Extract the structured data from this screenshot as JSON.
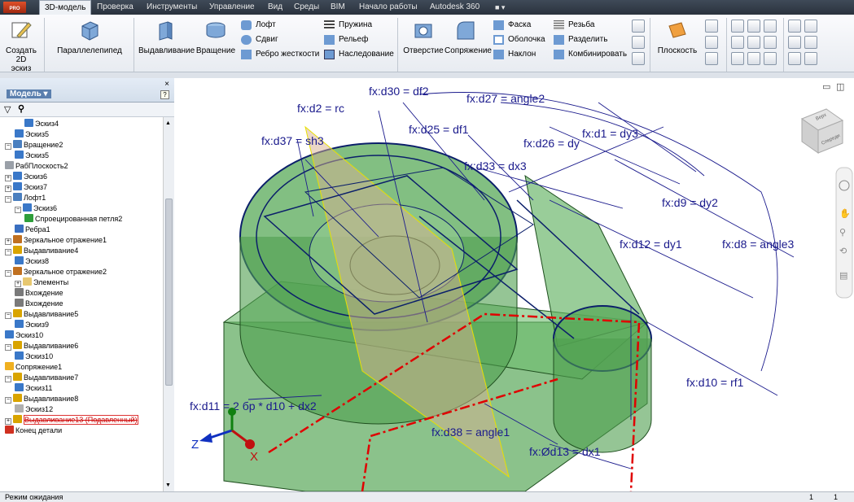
{
  "menu": {
    "tabs": [
      "3D-модель",
      "Проверка",
      "Инструменты",
      "Управление",
      "Вид",
      "Среды",
      "BIM",
      "Начало работы",
      "Autodesk 360"
    ],
    "logo": "PRO"
  },
  "ribbon": {
    "create_sketch": "Создать\n2D эскиз",
    "box": "Параллелепипед",
    "extrude": "Выдавливание",
    "revolve": "Вращение",
    "loft": "Лофт",
    "sweep": "Сдвиг",
    "rib": "Ребро жесткости",
    "coil": "Пружина",
    "emboss": "Рельеф",
    "derive": "Наследование",
    "hole": "Отверстие",
    "fillet": "Сопряжение",
    "chamfer": "Фаска",
    "shell": "Оболочка",
    "draft": "Наклон",
    "thread": "Резьба",
    "split": "Разделить",
    "combine": "Комбинировать",
    "plane": "Плоскость"
  },
  "panel": {
    "title": "Модель ▾",
    "close": "×",
    "help": "?"
  },
  "tree": [
    {
      "label": "Эскиз4",
      "indent": 2,
      "icon": "sketch"
    },
    {
      "label": "Эскиз5",
      "indent": 1,
      "icon": "sketch"
    },
    {
      "label": "Вращение2",
      "indent": 0,
      "icon": "revolve",
      "expander": "−"
    },
    {
      "label": "Эскиз5",
      "indent": 1,
      "icon": "sketch"
    },
    {
      "label": "РабПлоскость2",
      "indent": 0,
      "icon": "plane"
    },
    {
      "label": "Эскиз6",
      "indent": 0,
      "icon": "sketch",
      "expander": "+"
    },
    {
      "label": "Эскиз7",
      "indent": 0,
      "icon": "sketch",
      "expander": "+"
    },
    {
      "label": "Лофт1",
      "indent": 0,
      "icon": "loft",
      "expander": "−"
    },
    {
      "label": "Эскиз6",
      "indent": 1,
      "icon": "sketch",
      "expander": "−"
    },
    {
      "label": "Спроецированная петля2",
      "indent": 2,
      "icon": "loop"
    },
    {
      "label": "Ребра1",
      "indent": 1,
      "icon": "edges"
    },
    {
      "label": "Зеркальное отражение1",
      "indent": 0,
      "icon": "mirror",
      "expander": "+"
    },
    {
      "label": "Выдавливание4",
      "indent": 0,
      "icon": "extrude",
      "expander": "−"
    },
    {
      "label": "Эскиз8",
      "indent": 1,
      "icon": "sketch"
    },
    {
      "label": "Зеркальное отражение2",
      "indent": 0,
      "icon": "mirror",
      "expander": "−"
    },
    {
      "label": "Элементы",
      "indent": 1,
      "icon": "folder",
      "expander": "+"
    },
    {
      "label": "Вхождение",
      "indent": 1,
      "icon": "occurrence"
    },
    {
      "label": "Вхождение",
      "indent": 1,
      "icon": "occurrence"
    },
    {
      "label": "Выдавливание5",
      "indent": 0,
      "icon": "extrude",
      "expander": "−"
    },
    {
      "label": "Эскиз9",
      "indent": 1,
      "icon": "sketch"
    },
    {
      "label": "Эскиз10",
      "indent": 0,
      "icon": "sketch"
    },
    {
      "label": "Выдавливание6",
      "indent": 0,
      "icon": "extrude",
      "expander": "−"
    },
    {
      "label": "Эскиз10",
      "indent": 1,
      "icon": "sketch"
    },
    {
      "label": "Сопряжение1",
      "indent": 0,
      "icon": "fillet"
    },
    {
      "label": "Выдавливание7",
      "indent": 0,
      "icon": "extrude",
      "expander": "−"
    },
    {
      "label": "Эскиз11",
      "indent": 1,
      "icon": "sketch"
    },
    {
      "label": "Выдавливание8",
      "indent": 0,
      "icon": "extrude",
      "expander": "−"
    },
    {
      "label": "Эскиз12",
      "indent": 1,
      "icon": "sketch-gray"
    },
    {
      "label": "Выдавливание13 (Подавленный)",
      "indent": 0,
      "icon": "extrude",
      "expander": "+",
      "suppressed": true
    },
    {
      "label": "Конец детали",
      "indent": 0,
      "icon": "end"
    }
  ],
  "dims": {
    "d30": "fx:d30 = df2",
    "d27": "fx:d27 = angle2",
    "d2": "fx:d2 = rc",
    "d25": "fx:d25 = df1",
    "d1": "fx:d1 = dy3",
    "d37": "fx:d37 = sh3",
    "d26": "fx:d26 = dy",
    "d33": "fx:d33 = dx3",
    "d9": "fx:d9 = dy2",
    "d12": "fx:d12 = dy1",
    "d8": "fx:d8 = angle3",
    "d10": "fx:d10 = rf1",
    "d11": "fx:d11 = 2 бр * d10 + dx2",
    "d38": "fx:d38 = angle1",
    "d13": "fx:Ød13 = dx1"
  },
  "axes": {
    "z": "Z",
    "x": "X"
  },
  "viewcube": {
    "top": "Верх",
    "front": "Спереди"
  },
  "status": {
    "text": "Режим ожидания",
    "n1": "1",
    "n2": "1"
  }
}
